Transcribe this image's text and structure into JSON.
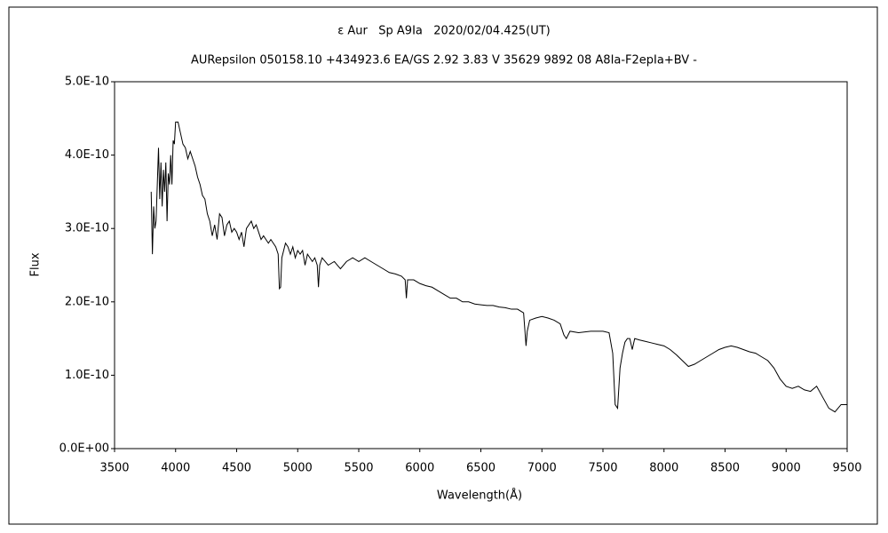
{
  "chart_data": {
    "type": "line",
    "title": "ε Aur   Sp A9Ia   2020/02/04.425(UT)",
    "subtitle": "AURepsilon 050158.10 +434923.6 EA/GS 2.92 3.83 V 35629 9892 08 A8Ia-F2epIa+BV -",
    "x_label": "Wavelength(Å)",
    "y_label": "Flux",
    "color": "#000000",
    "xlim": [
      3500,
      9500
    ],
    "xticks": [
      3500,
      4000,
      4500,
      5000,
      5500,
      6000,
      6500,
      7000,
      7500,
      8000,
      8500,
      9000,
      9500
    ],
    "ylim": [
      0,
      5e-10
    ],
    "yticks": [
      {
        "value": 0,
        "label": "0.0E+00"
      },
      {
        "value": 1e-10,
        "label": "1.0E-10"
      },
      {
        "value": 2e-10,
        "label": "2.0E-10"
      },
      {
        "value": 3e-10,
        "label": "3.0E-10"
      },
      {
        "value": 4e-10,
        "label": "4.0E-10"
      },
      {
        "value": 5e-10,
        "label": "5.0E-10"
      }
    ],
    "grid": false,
    "x": [
      3800,
      3810,
      3820,
      3830,
      3840,
      3850,
      3860,
      3870,
      3880,
      3890,
      3900,
      3910,
      3920,
      3930,
      3940,
      3950,
      3960,
      3970,
      3980,
      3990,
      4000,
      4020,
      4040,
      4060,
      4080,
      4100,
      4120,
      4140,
      4160,
      4180,
      4200,
      4220,
      4240,
      4260,
      4280,
      4300,
      4320,
      4340,
      4360,
      4380,
      4400,
      4420,
      4440,
      4460,
      4480,
      4500,
      4520,
      4540,
      4560,
      4580,
      4600,
      4620,
      4640,
      4660,
      4680,
      4700,
      4720,
      4740,
      4760,
      4780,
      4800,
      4820,
      4840,
      4850,
      4860,
      4870,
      4900,
      4920,
      4940,
      4960,
      4980,
      5000,
      5020,
      5040,
      5060,
      5080,
      5100,
      5120,
      5140,
      5160,
      5170,
      5180,
      5200,
      5250,
      5300,
      5350,
      5400,
      5450,
      5500,
      5550,
      5600,
      5650,
      5700,
      5750,
      5800,
      5850,
      5880,
      5890,
      5900,
      5950,
      6000,
      6050,
      6100,
      6150,
      6200,
      6250,
      6300,
      6350,
      6400,
      6450,
      6500,
      6550,
      6600,
      6650,
      6700,
      6750,
      6800,
      6850,
      6870,
      6880,
      6900,
      6950,
      7000,
      7050,
      7100,
      7150,
      7180,
      7200,
      7230,
      7300,
      7400,
      7500,
      7550,
      7580,
      7600,
      7620,
      7640,
      7660,
      7680,
      7700,
      7720,
      7740,
      7760,
      7800,
      7850,
      7900,
      7950,
      8000,
      8050,
      8100,
      8150,
      8200,
      8250,
      8300,
      8350,
      8400,
      8450,
      8500,
      8550,
      8600,
      8650,
      8700,
      8750,
      8800,
      8850,
      8900,
      8950,
      9000,
      9050,
      9100,
      9150,
      9200,
      9250,
      9300,
      9350,
      9400,
      9450,
      9500
    ],
    "values": [
      3.5e-10,
      2.65e-10,
      3.3e-10,
      3e-10,
      3.1e-10,
      3.6e-10,
      4.1e-10,
      3.4e-10,
      3.9e-10,
      3.3e-10,
      3.8e-10,
      3.5e-10,
      3.9e-10,
      3.1e-10,
      3.75e-10,
      3.6e-10,
      4e-10,
      3.6e-10,
      4.2e-10,
      4.15e-10,
      4.45e-10,
      4.45e-10,
      4.3e-10,
      4.15e-10,
      4.1e-10,
      3.95e-10,
      4.05e-10,
      3.95e-10,
      3.85e-10,
      3.7e-10,
      3.6e-10,
      3.45e-10,
      3.4e-10,
      3.2e-10,
      3.1e-10,
      2.9e-10,
      3.05e-10,
      2.85e-10,
      3.2e-10,
      3.15e-10,
      2.9e-10,
      3.05e-10,
      3.1e-10,
      2.95e-10,
      3e-10,
      2.95e-10,
      2.85e-10,
      2.95e-10,
      2.75e-10,
      3e-10,
      3.05e-10,
      3.1e-10,
      3e-10,
      3.05e-10,
      2.95e-10,
      2.85e-10,
      2.9e-10,
      2.85e-10,
      2.8e-10,
      2.85e-10,
      2.8e-10,
      2.75e-10,
      2.65e-10,
      2.18e-10,
      2.2e-10,
      2.6e-10,
      2.8e-10,
      2.75e-10,
      2.65e-10,
      2.75e-10,
      2.6e-10,
      2.7e-10,
      2.65e-10,
      2.7e-10,
      2.5e-10,
      2.65e-10,
      2.6e-10,
      2.55e-10,
      2.6e-10,
      2.5e-10,
      2.2e-10,
      2.5e-10,
      2.6e-10,
      2.5e-10,
      2.55e-10,
      2.45e-10,
      2.55e-10,
      2.6e-10,
      2.55e-10,
      2.6e-10,
      2.55e-10,
      2.5e-10,
      2.45e-10,
      2.4e-10,
      2.38e-10,
      2.35e-10,
      2.3e-10,
      2.05e-10,
      2.3e-10,
      2.3e-10,
      2.25e-10,
      2.22e-10,
      2.2e-10,
      2.15e-10,
      2.1e-10,
      2.05e-10,
      2.05e-10,
      2e-10,
      2e-10,
      1.97e-10,
      1.96e-10,
      1.95e-10,
      1.95e-10,
      1.93e-10,
      1.92e-10,
      1.9e-10,
      1.9e-10,
      1.85e-10,
      1.4e-10,
      1.6e-10,
      1.75e-10,
      1.78e-10,
      1.8e-10,
      1.78e-10,
      1.75e-10,
      1.7e-10,
      1.55e-10,
      1.5e-10,
      1.6e-10,
      1.58e-10,
      1.6e-10,
      1.6e-10,
      1.58e-10,
      1.3e-10,
      6e-11,
      5.5e-11,
      1.1e-10,
      1.3e-10,
      1.45e-10,
      1.5e-10,
      1.5e-10,
      1.35e-10,
      1.5e-10,
      1.48e-10,
      1.46e-10,
      1.44e-10,
      1.42e-10,
      1.4e-10,
      1.35e-10,
      1.28e-10,
      1.2e-10,
      1.12e-10,
      1.15e-10,
      1.2e-10,
      1.25e-10,
      1.3e-10,
      1.35e-10,
      1.38e-10,
      1.4e-10,
      1.38e-10,
      1.35e-10,
      1.32e-10,
      1.3e-10,
      1.25e-10,
      1.2e-10,
      1.1e-10,
      9.5e-11,
      8.5e-11,
      8.2e-11,
      8.5e-11,
      8e-11,
      7.8e-11,
      8.5e-11,
      7e-11,
      5.5e-11,
      5e-11,
      6e-11,
      6e-11
    ]
  }
}
